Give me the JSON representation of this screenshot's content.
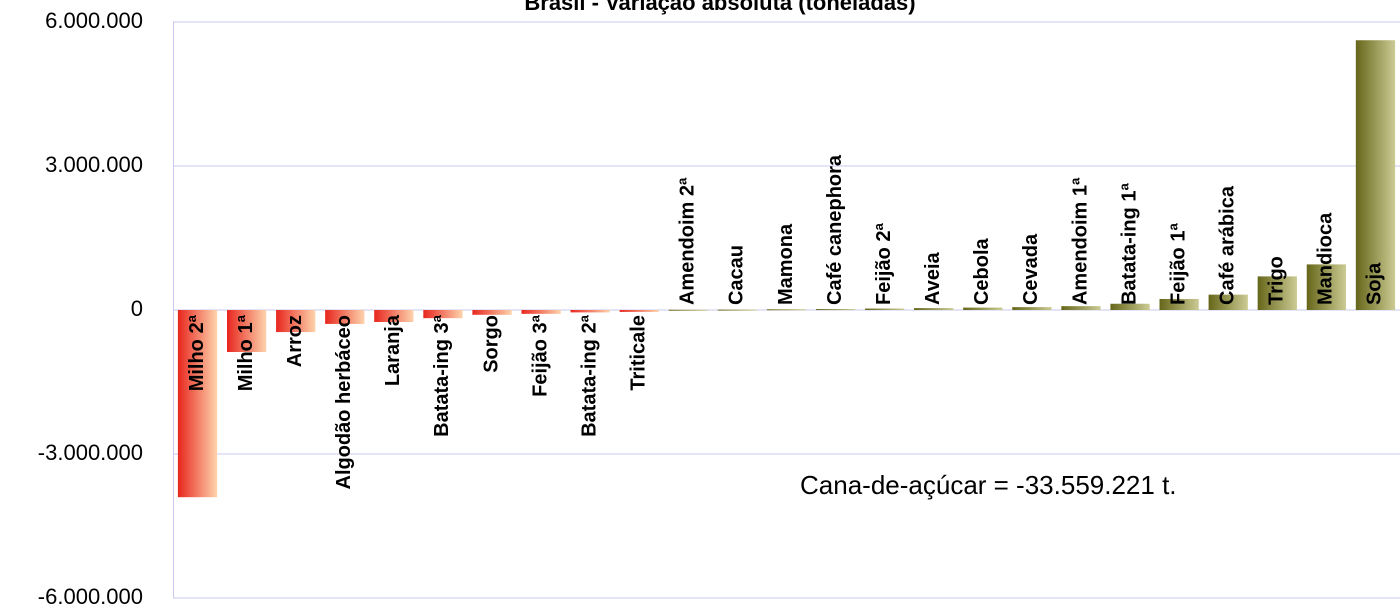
{
  "chart_data": {
    "type": "bar",
    "title": "Brasil - Variação absoluta (toneladas)",
    "annotation": "Cana-de-açúcar = -33.559.221 t.",
    "categories": [
      "Milho 2ª",
      "Milho 1ª",
      "Arroz",
      "Algodão herbáceo",
      "Laranja",
      "Batata-ing 3ª",
      "Sorgo",
      "Feijão 3ª",
      "Batata-ing 2ª",
      "Triticale",
      "Amendoim 2ª",
      "Cacau",
      "Mamona",
      "Café canephora",
      "Feijão 2ª",
      "Aveia",
      "Cebola",
      "Cevada",
      "Amendoim 1ª",
      "Batata-ing 1ª",
      "Feijão 1ª",
      "Café arábica",
      "Trigo",
      "Mandioca",
      "Soja"
    ],
    "values": [
      -3900000,
      -875000,
      -460000,
      -290000,
      -250000,
      -170000,
      -100000,
      -80000,
      -50000,
      -40000,
      5000,
      8000,
      15000,
      20000,
      30000,
      40000,
      50000,
      60000,
      80000,
      130000,
      230000,
      320000,
      700000,
      950000,
      5620000
    ],
    "colors": {
      "negative": [
        "#e8261e",
        "#fdd3ac"
      ],
      "positive": [
        "#66661a",
        "#cbcb94"
      ]
    },
    "ylim": [
      -6000000,
      6000000
    ],
    "yticks": [
      {
        "value": -6000000,
        "label": "-6.000.000"
      },
      {
        "value": -3000000,
        "label": "-3.000.000"
      },
      0,
      {
        "value": 3000000,
        "label": "3.000.000"
      },
      {
        "value": 6000000,
        "label": "6.000.000"
      }
    ],
    "grid": true
  }
}
